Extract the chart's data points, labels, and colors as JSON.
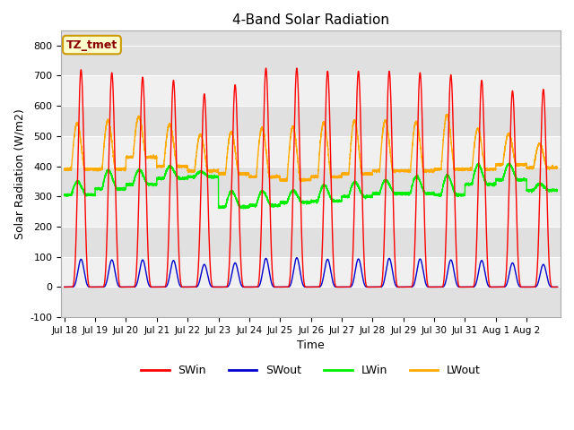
{
  "title": "4-Band Solar Radiation",
  "xlabel": "Time",
  "ylabel": "Solar Radiation (W/m2)",
  "ylim": [
    -100,
    850
  ],
  "label_box_text": "TZ_tmet",
  "colors": {
    "SWin": "#ff0000",
    "SWout": "#0000cc",
    "LWin": "#00ee00",
    "LWout": "#ffaa00"
  },
  "bg_color": "#ffffff",
  "plot_bg_color": "#e0e0e0",
  "band_color": "#f0f0f0",
  "xtick_labels": [
    "Jul 18",
    "Jul 19",
    "Jul 20",
    "Jul 21",
    "Jul 22",
    "Jul 23",
    "Jul 24",
    "Jul 25",
    "Jul 26",
    "Jul 27",
    "Jul 28",
    "Jul 29",
    "Jul 30",
    "Jul 31",
    "Aug 1",
    "Aug 2"
  ],
  "SWin_peaks": [
    720,
    710,
    695,
    685,
    640,
    670,
    725,
    725,
    715,
    715,
    715,
    710,
    703,
    685,
    650,
    655
  ],
  "SWout_peaks": [
    92,
    90,
    90,
    88,
    75,
    80,
    95,
    97,
    92,
    93,
    95,
    93,
    90,
    88,
    80,
    75
  ],
  "LWin_night": [
    305,
    325,
    340,
    360,
    365,
    265,
    270,
    280,
    285,
    300,
    310,
    310,
    305,
    340,
    355,
    320
  ],
  "LWin_day": [
    355,
    395,
    395,
    405,
    385,
    325,
    325,
    325,
    345,
    355,
    360,
    375,
    380,
    415,
    415,
    345
  ],
  "LWout_night": [
    390,
    390,
    430,
    400,
    385,
    375,
    365,
    355,
    365,
    375,
    385,
    385,
    390,
    390,
    405,
    395
  ],
  "LWout_day": [
    555,
    565,
    575,
    550,
    515,
    525,
    540,
    545,
    560,
    565,
    565,
    560,
    585,
    535,
    515,
    480
  ]
}
